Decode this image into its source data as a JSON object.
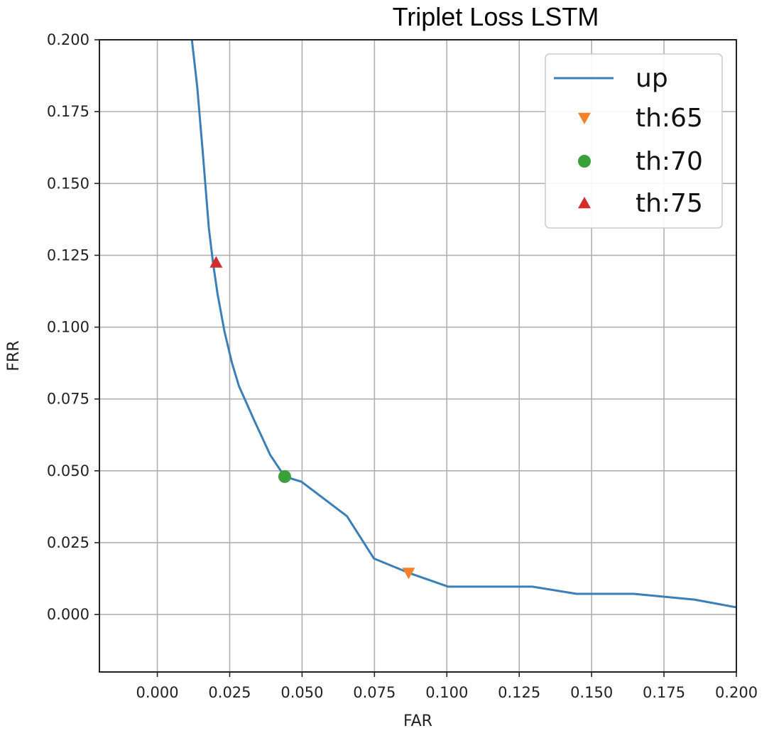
{
  "chart_data": {
    "type": "line",
    "title": "Triplet Loss LSTM",
    "xlabel": "FAR",
    "ylabel": "FRR",
    "xlim": [
      -0.02,
      0.2
    ],
    "ylim": [
      -0.02,
      0.2
    ],
    "x_ticks": [
      "0.000",
      "0.025",
      "0.050",
      "0.075",
      "0.100",
      "0.125",
      "0.150",
      "0.175",
      "0.200"
    ],
    "x_tick_values": [
      0.0,
      0.025,
      0.05,
      0.075,
      0.1,
      0.125,
      0.15,
      0.175,
      0.2
    ],
    "y_ticks": [
      "0.000",
      "0.025",
      "0.050",
      "0.075",
      "0.100",
      "0.125",
      "0.150",
      "0.175",
      "0.200"
    ],
    "y_tick_values": [
      0.0,
      0.025,
      0.05,
      0.075,
      0.1,
      0.125,
      0.15,
      0.175,
      0.2
    ],
    "grid": true,
    "legend_position": "top-right",
    "series": [
      {
        "name": "up",
        "color": "#3a7fb8",
        "x": [
          0.0118,
          0.0138,
          0.0158,
          0.0178,
          0.0193,
          0.0208,
          0.0232,
          0.0258,
          0.0282,
          0.0335,
          0.039,
          0.044,
          0.0498,
          0.0655,
          0.0748,
          0.0868,
          0.1005,
          0.1295,
          0.1448,
          0.1645,
          0.1855,
          0.2
        ],
        "y": [
          0.2012,
          0.1835,
          0.1595,
          0.1345,
          0.122,
          0.1115,
          0.0985,
          0.0875,
          0.0795,
          0.0675,
          0.0555,
          0.048,
          0.0462,
          0.0342,
          0.0195,
          0.0145,
          0.0097,
          0.0097,
          0.0072,
          0.0072,
          0.0052,
          0.0025
        ]
      }
    ],
    "markers": [
      {
        "name": "th:65",
        "shape": "triangle-down",
        "color": "#f5822b",
        "x": 0.0868,
        "y": 0.0145
      },
      {
        "name": "th:70",
        "shape": "circle",
        "color": "#3aa03a",
        "x": 0.044,
        "y": 0.048
      },
      {
        "name": "th:75",
        "shape": "triangle-up",
        "color": "#d32c2c",
        "x": 0.0203,
        "y": 0.1225
      }
    ]
  }
}
